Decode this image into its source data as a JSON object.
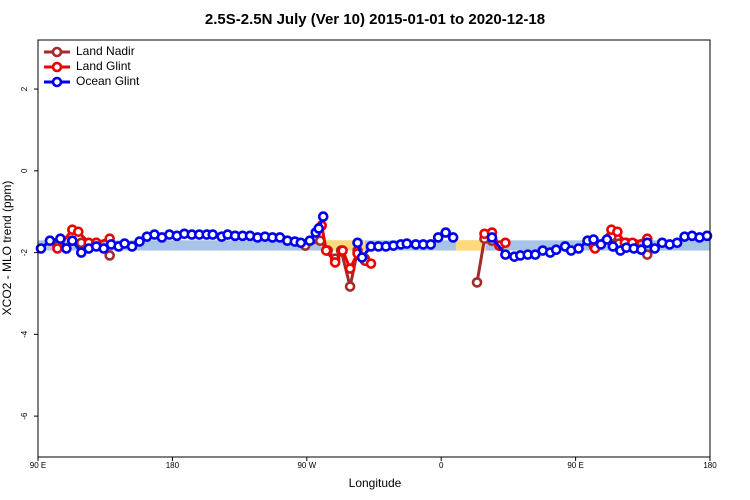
{
  "chart_data": {
    "type": "line",
    "title": "2.5S-2.5N July (Ver 10)   2015-01-01 to 2020-12-18",
    "x_label": "Longitude",
    "y_label": "XCO2 - MLO trend (ppm)",
    "xlim": [
      90,
      540
    ],
    "xticks": [
      {
        "value": 90,
        "label": "90 E"
      },
      180,
      {
        "value": 270,
        "label": "90 W"
      },
      {
        "value": 360,
        "label": "0"
      },
      {
        "value": 450,
        "label": "90 E"
      },
      {
        "value": 540,
        "label": "180"
      }
    ],
    "ylim": [
      -7,
      3.2
    ],
    "yticks": [
      -6,
      -4,
      -2,
      0,
      2
    ],
    "legend": "top-left",
    "bands": [
      {
        "x": [
          90,
          540
        ],
        "y": [
          -1.95,
          -1.7
        ],
        "color": "#a7c3e8"
      },
      {
        "x": [
          282,
          309
        ],
        "y": [
          -1.95,
          -1.7
        ],
        "color": "#ffd97a"
      },
      {
        "x": [
          370,
          390
        ],
        "y": [
          -1.95,
          -1.7
        ],
        "color": "#ffd97a"
      }
    ],
    "series": [
      {
        "name": "Land Nadir",
        "color": "#a52a2a",
        "x": [
          103,
          109,
          113,
          119,
          124,
          129,
          138,
          200,
          269,
          279,
          284,
          289,
          293,
          299,
          304,
          309,
          350,
          384,
          389,
          394,
          399,
          430,
          462,
          474,
          479,
          484,
          489,
          498
        ],
        "values": [
          -1.83,
          -1.9,
          -1.71,
          -1.76,
          -1.85,
          -1.76,
          -2.07,
          null,
          -1.83,
          -1.71,
          -1.95,
          -2.15,
          -1.95,
          -2.83,
          -1.95,
          -2.15,
          null,
          -2.73,
          -1.66,
          -1.71,
          -1.83,
          null,
          -1.83,
          -1.61,
          -1.78,
          -1.76,
          -1.78,
          -2.05
        ]
      },
      {
        "name": "Land Glint",
        "color": "#ee0000",
        "x": [
          103,
          113,
          117,
          124,
          129,
          138,
          200,
          280,
          283,
          289,
          294,
          299,
          304,
          309,
          313,
          350,
          389,
          394,
          399,
          403,
          430,
          463,
          474,
          478,
          483,
          488,
          498
        ],
        "values": [
          -1.9,
          -1.44,
          -1.49,
          -1.76,
          -1.76,
          -1.66,
          null,
          -1.34,
          -1.95,
          -2.24,
          -1.95,
          -2.39,
          -2.02,
          -2.2,
          -2.27,
          null,
          -1.54,
          -1.51,
          -1.83,
          -1.76,
          null,
          -1.9,
          -1.44,
          -1.49,
          -1.76,
          -1.76,
          -1.66
        ]
      },
      {
        "name": "Ocean Glint",
        "color": "#0000ee",
        "x": [
          92,
          98,
          105,
          109,
          113,
          119,
          124,
          129,
          134,
          139,
          144,
          148,
          153,
          158,
          163,
          168,
          173,
          178,
          183,
          188,
          193,
          198,
          203,
          207,
          213,
          217,
          222,
          227,
          232,
          237,
          242,
          247,
          252,
          257,
          262,
          266,
          272,
          276,
          278,
          281,
          290,
          304,
          307,
          313,
          318,
          323,
          328,
          333,
          337,
          343,
          348,
          353,
          358,
          363,
          368,
          380,
          394,
          403,
          409,
          413,
          418,
          423,
          428,
          433,
          437,
          443,
          447,
          452,
          458,
          462,
          467,
          471,
          475,
          480,
          484,
          489,
          494,
          498,
          503,
          508,
          513,
          518,
          523,
          528,
          533,
          538
        ],
        "values": [
          -1.9,
          -1.71,
          -1.66,
          -1.9,
          -1.71,
          -2.0,
          -1.9,
          -1.85,
          -1.9,
          -1.8,
          -1.85,
          -1.78,
          -1.85,
          -1.73,
          -1.61,
          -1.56,
          -1.63,
          -1.56,
          -1.59,
          -1.54,
          -1.56,
          -1.56,
          -1.56,
          -1.56,
          -1.61,
          -1.56,
          -1.59,
          -1.59,
          -1.59,
          -1.63,
          -1.61,
          -1.63,
          -1.63,
          -1.71,
          -1.73,
          -1.76,
          -1.71,
          -1.51,
          -1.41,
          -1.12,
          null,
          -1.76,
          -2.12,
          -1.85,
          -1.85,
          -1.85,
          -1.83,
          -1.8,
          -1.78,
          -1.8,
          -1.8,
          -1.8,
          -1.63,
          -1.51,
          -1.63,
          null,
          -1.63,
          -2.05,
          -2.1,
          -2.07,
          -2.05,
          -2.05,
          -1.95,
          -2.0,
          -1.93,
          -1.85,
          -1.95,
          -1.9,
          -1.71,
          -1.68,
          -1.8,
          -1.68,
          -1.85,
          -1.95,
          -1.88,
          -1.9,
          -1.93,
          -1.76,
          -1.9,
          -1.76,
          -1.8,
          -1.76,
          -1.61,
          -1.59,
          -1.63,
          -1.59
        ]
      }
    ]
  }
}
